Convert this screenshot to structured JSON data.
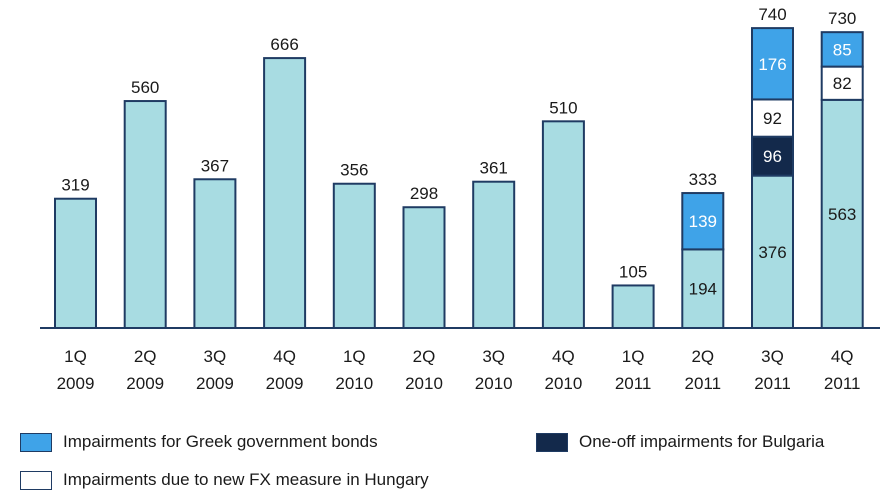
{
  "chart_data": {
    "type": "bar",
    "stacked": true,
    "categories": [
      "1Q 2009",
      "2Q 2009",
      "3Q 2009",
      "4Q 2009",
      "1Q 2010",
      "2Q 2010",
      "3Q 2010",
      "4Q 2010",
      "1Q 2011",
      "2Q 2011",
      "3Q 2011",
      "4Q 2011"
    ],
    "category_lines": [
      [
        "1Q",
        "2009"
      ],
      [
        "2Q",
        "2009"
      ],
      [
        "3Q",
        "2009"
      ],
      [
        "4Q",
        "2009"
      ],
      [
        "1Q",
        "2010"
      ],
      [
        "2Q",
        "2010"
      ],
      [
        "3Q",
        "2010"
      ],
      [
        "4Q",
        "2010"
      ],
      [
        "1Q",
        "2011"
      ],
      [
        "2Q",
        "2011"
      ],
      [
        "3Q",
        "2011"
      ],
      [
        "4Q",
        "2011"
      ]
    ],
    "series": [
      {
        "key": "base",
        "values": [
          319,
          560,
          367,
          666,
          356,
          298,
          361,
          510,
          105,
          194,
          376,
          563
        ],
        "color": "#a8dce2",
        "text_color": "#1a1a1a"
      },
      {
        "key": "bulgaria",
        "name": "One-off impairments for Bulgaria",
        "values": [
          0,
          0,
          0,
          0,
          0,
          0,
          0,
          0,
          0,
          0,
          96,
          0
        ],
        "color": "#13294b",
        "text_color": "#ffffff"
      },
      {
        "key": "hungary",
        "name": "Impairments due to new FX measure in Hungary",
        "values": [
          0,
          0,
          0,
          0,
          0,
          0,
          0,
          0,
          0,
          0,
          92,
          82
        ],
        "color": "#ffffff",
        "text_color": "#1a1a1a"
      },
      {
        "key": "greek",
        "name": "Impairments for Greek government bonds",
        "values": [
          0,
          0,
          0,
          0,
          0,
          0,
          0,
          0,
          0,
          139,
          176,
          85
        ],
        "color": "#3fa3e8",
        "text_color": "#ffffff"
      }
    ],
    "totals": [
      319,
      560,
      367,
      666,
      356,
      298,
      361,
      510,
      105,
      333,
      740,
      730
    ],
    "segment_labels_for": [
      "2Q 2011",
      "3Q 2011",
      "4Q 2011"
    ],
    "ylim": [
      0,
      760
    ],
    "axis_color": "#1f3b63",
    "bar_border": "#1f3b63",
    "grid": false,
    "legend_position": "bottom"
  },
  "legend": {
    "greek": "Impairments for Greek government bonds",
    "bulgaria": "One-off impairments for Bulgaria",
    "hungary": "Impairments due to new FX measure in Hungary"
  }
}
